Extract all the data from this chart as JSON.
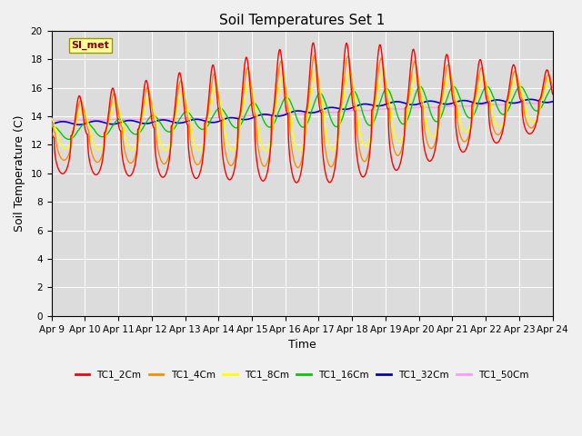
{
  "title": "Soil Temperatures Set 1",
  "xlabel": "Time",
  "ylabel": "Soil Temperature (C)",
  "ylim": [
    0,
    20
  ],
  "yticks": [
    0,
    2,
    4,
    6,
    8,
    10,
    12,
    14,
    16,
    18,
    20
  ],
  "xtick_labels": [
    "Apr 9",
    "Apr 10",
    "Apr 11",
    "Apr 12",
    "Apr 13",
    "Apr 14",
    "Apr 15",
    "Apr 16",
    "Apr 17",
    "Apr 18",
    "Apr 19",
    "Apr 20",
    "Apr 21",
    "Apr 22",
    "Apr 23",
    "Apr 24"
  ],
  "annotation_text": "SI_met",
  "series": {
    "TC1_2Cm": {
      "color": "#FF0000",
      "lw": 1.0
    },
    "TC1_4Cm": {
      "color": "#FF8C00",
      "lw": 1.0
    },
    "TC1_8Cm": {
      "color": "#FFFF00",
      "lw": 1.0
    },
    "TC1_16Cm": {
      "color": "#00CC00",
      "lw": 1.0
    },
    "TC1_32Cm": {
      "color": "#0000CC",
      "lw": 1.2
    },
    "TC1_50Cm": {
      "color": "#FF99FF",
      "lw": 1.0
    }
  },
  "bg_color": "#DCDCDC",
  "fig_bg": "#F0F0F0",
  "grid_color": "#FFFFFF",
  "title_fontsize": 11,
  "axis_label_fontsize": 9,
  "tick_fontsize": 7.5
}
